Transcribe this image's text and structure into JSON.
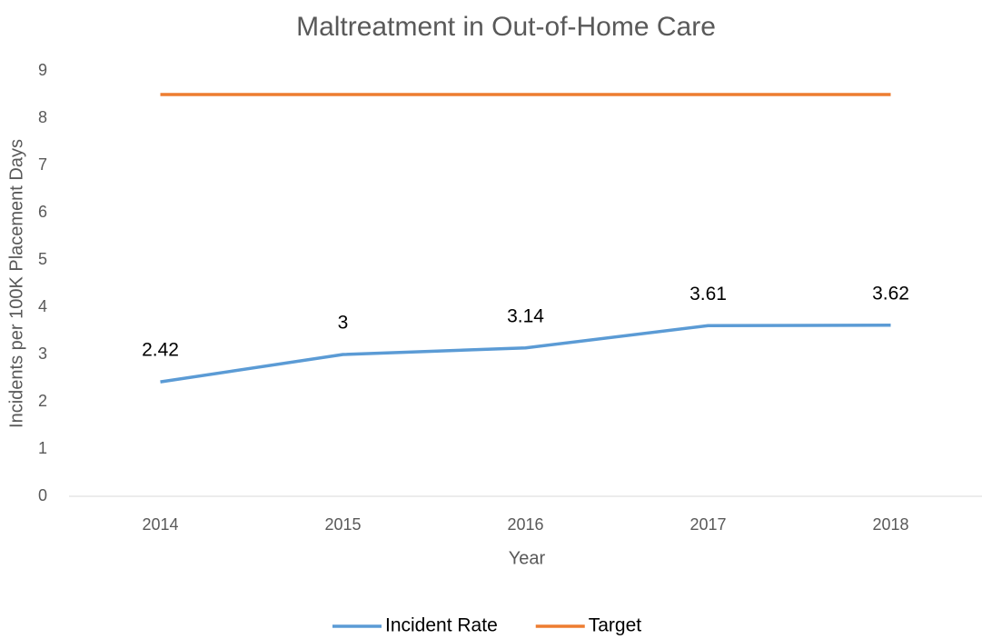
{
  "chart_data": {
    "type": "line",
    "title": "Maltreatment in Out-of-Home Care",
    "xlabel": "Year",
    "ylabel": "Incidents per 100K Placement Days",
    "categories": [
      "2014",
      "2015",
      "2016",
      "2017",
      "2018"
    ],
    "series": [
      {
        "name": "Incident Rate",
        "color": "#5b9bd5",
        "values": [
          2.42,
          3,
          3.14,
          3.61,
          3.62
        ],
        "data_labels": true
      },
      {
        "name": "Target",
        "color": "#ed7d31",
        "values": [
          8.5,
          8.5,
          8.5,
          8.5,
          8.5
        ],
        "data_labels": false
      }
    ],
    "ylim": [
      0,
      9
    ],
    "yticks": [
      0,
      1,
      2,
      3,
      4,
      5,
      6,
      7,
      8,
      9
    ],
    "grid": false,
    "legend": "bottom"
  }
}
